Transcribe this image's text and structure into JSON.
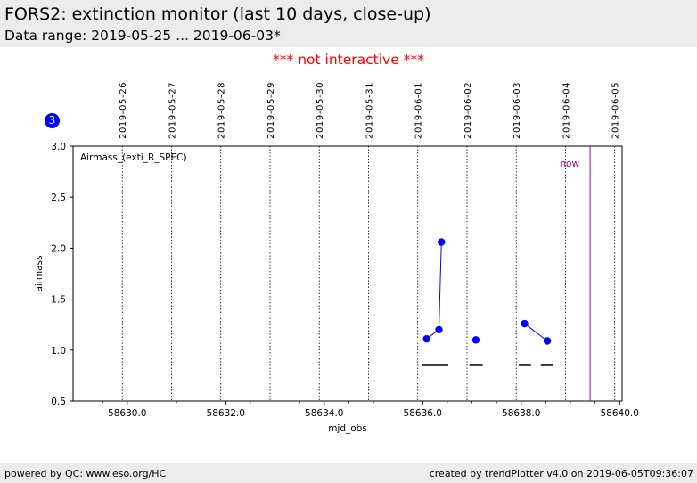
{
  "header": {
    "title": "FORS2: extinction monitor (last 10 days, close-up)",
    "subtitle": "Data range: 2019-05-25 ... 2019-06-03*"
  },
  "notice": "*** not interactive ***",
  "badge": "3",
  "footer": {
    "left": "powered by QC: www.eso.org/HC",
    "right": "created by trendPlotter v4.0 on 2019-06-05T09:36:07"
  },
  "colors": {
    "data": "#0000ff",
    "now_line": "#aa00aa",
    "notice": "#ff0000",
    "badge": "#0000ee"
  },
  "chart_data": {
    "type": "scatter",
    "panel_label": "Airmass_(exti_R_SPEC)",
    "xlabel": "mjd_obs",
    "ylabel": "airmass",
    "xlim": [
      58628.9,
      58640.05
    ],
    "ylim": [
      0.5,
      3.0
    ],
    "x_ticks": [
      58630.0,
      58632.0,
      58634.0,
      58636.0,
      58638.0,
      58640.0
    ],
    "x_tick_labels": [
      "58630.0",
      "58632.0",
      "58634.0",
      "58636.0",
      "58638.0",
      "58640.0"
    ],
    "y_ticks": [
      0.5,
      1.0,
      1.5,
      2.0,
      2.5,
      3.0
    ],
    "y_tick_labels": [
      "0.5",
      "1.0",
      "1.5",
      "2.0",
      "2.5",
      "3.0"
    ],
    "date_lines": [
      {
        "x": 58629.9,
        "label": "2019-05-26"
      },
      {
        "x": 58630.9,
        "label": "2019-05-27"
      },
      {
        "x": 58631.9,
        "label": "2019-05-28"
      },
      {
        "x": 58632.9,
        "label": "2019-05-29"
      },
      {
        "x": 58633.9,
        "label": "2019-05-30"
      },
      {
        "x": 58634.9,
        "label": "2019-05-31"
      },
      {
        "x": 58635.9,
        "label": "2019-06-01"
      },
      {
        "x": 58636.9,
        "label": "2019-06-02"
      },
      {
        "x": 58637.9,
        "label": "2019-06-03"
      },
      {
        "x": 58638.9,
        "label": "2019-06-04"
      },
      {
        "x": 58639.9,
        "label": "2019-06-05"
      }
    ],
    "now": {
      "x": 58639.4,
      "label": "now"
    },
    "series": [
      {
        "points": [
          [
            58636.08,
            1.11
          ],
          [
            58636.33,
            1.2
          ],
          [
            58636.38,
            2.06
          ]
        ]
      },
      {
        "points": [
          [
            58637.08,
            1.1
          ]
        ]
      },
      {
        "points": [
          [
            58638.07,
            1.26
          ],
          [
            58638.53,
            1.09
          ]
        ]
      }
    ],
    "night_bars": [
      {
        "x0": 58635.98,
        "x1": 58636.52,
        "y": 0.85
      },
      {
        "x0": 58636.95,
        "x1": 58637.22,
        "y": 0.85
      },
      {
        "x0": 58637.95,
        "x1": 58638.2,
        "y": 0.85
      },
      {
        "x0": 58638.4,
        "x1": 58638.65,
        "y": 0.85
      }
    ]
  }
}
